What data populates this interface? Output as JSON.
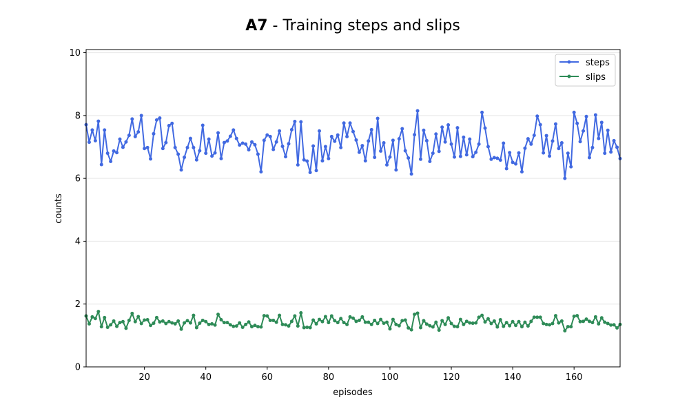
{
  "chart_data": {
    "type": "line",
    "title_bold": "A7",
    "title_rest": " - Training steps and slips",
    "xlabel": "episodes",
    "ylabel": "counts",
    "xlim": [
      1,
      175
    ],
    "ylim": [
      0,
      10.1
    ],
    "xticks": [
      20,
      40,
      60,
      80,
      100,
      120,
      140,
      160
    ],
    "yticks": [
      0,
      2,
      4,
      6,
      8,
      10
    ],
    "grid": "horizontal",
    "legend": "top-right",
    "series": [
      {
        "name": "steps",
        "color": "#4169e1",
        "values": [
          7.71,
          7.15,
          7.54,
          7.2,
          7.82,
          6.44,
          7.54,
          6.8,
          6.54,
          6.87,
          6.82,
          7.25,
          6.99,
          7.16,
          7.37,
          7.89,
          7.33,
          7.48,
          8.0,
          6.95,
          6.98,
          6.62,
          7.42,
          7.86,
          7.92,
          6.95,
          7.14,
          7.68,
          7.75,
          6.98,
          6.77,
          6.27,
          6.67,
          6.98,
          7.27,
          6.98,
          6.59,
          6.88,
          7.69,
          6.8,
          7.25,
          6.71,
          6.81,
          7.45,
          6.63,
          7.14,
          7.19,
          7.34,
          7.54,
          7.27,
          7.06,
          7.12,
          7.09,
          6.91,
          7.16,
          7.07,
          6.77,
          6.21,
          7.21,
          7.38,
          7.33,
          6.92,
          7.16,
          7.51,
          7.02,
          6.69,
          7.1,
          7.55,
          7.81,
          6.43,
          7.8,
          6.59,
          6.55,
          6.19,
          7.03,
          6.25,
          7.51,
          6.56,
          7.01,
          6.63,
          7.33,
          7.18,
          7.38,
          6.98,
          7.76,
          7.33,
          7.76,
          7.49,
          7.22,
          6.83,
          7.04,
          6.56,
          7.19,
          7.55,
          6.67,
          7.91,
          6.87,
          7.13,
          6.43,
          6.68,
          7.21,
          6.27,
          7.26,
          7.58,
          6.88,
          6.65,
          6.14,
          7.39,
          8.15,
          6.61,
          7.53,
          7.2,
          6.54,
          6.8,
          7.41,
          6.86,
          7.63,
          7.16,
          7.7,
          7.09,
          6.68,
          7.61,
          6.7,
          7.31,
          6.75,
          7.25,
          6.69,
          6.83,
          7.09,
          8.1,
          7.6,
          7.01,
          6.61,
          6.66,
          6.64,
          6.58,
          7.12,
          6.31,
          6.82,
          6.51,
          6.46,
          6.81,
          6.21,
          6.96,
          7.26,
          7.09,
          7.37,
          7.98,
          7.71,
          6.81,
          7.36,
          6.71,
          7.19,
          7.73,
          6.95,
          7.13,
          6.0,
          6.8,
          6.37,
          8.1,
          7.75,
          7.17,
          7.51,
          7.97,
          6.66,
          6.98,
          8.02,
          7.27,
          7.78,
          6.8,
          7.53,
          6.84,
          7.2,
          6.99,
          6.63
        ]
      },
      {
        "name": "slips",
        "color": "#2e8b57",
        "values": [
          1.62,
          1.37,
          1.59,
          1.54,
          1.76,
          1.28,
          1.57,
          1.26,
          1.34,
          1.46,
          1.29,
          1.41,
          1.44,
          1.23,
          1.48,
          1.7,
          1.44,
          1.6,
          1.38,
          1.49,
          1.5,
          1.32,
          1.39,
          1.57,
          1.43,
          1.46,
          1.38,
          1.44,
          1.4,
          1.37,
          1.46,
          1.2,
          1.4,
          1.47,
          1.4,
          1.64,
          1.25,
          1.39,
          1.48,
          1.44,
          1.35,
          1.37,
          1.33,
          1.67,
          1.5,
          1.41,
          1.41,
          1.34,
          1.29,
          1.3,
          1.4,
          1.26,
          1.35,
          1.43,
          1.28,
          1.32,
          1.28,
          1.27,
          1.63,
          1.62,
          1.48,
          1.48,
          1.42,
          1.64,
          1.35,
          1.34,
          1.3,
          1.45,
          1.62,
          1.3,
          1.72,
          1.25,
          1.26,
          1.25,
          1.49,
          1.37,
          1.51,
          1.44,
          1.6,
          1.41,
          1.62,
          1.47,
          1.41,
          1.54,
          1.41,
          1.35,
          1.59,
          1.55,
          1.45,
          1.48,
          1.59,
          1.42,
          1.42,
          1.35,
          1.48,
          1.38,
          1.51,
          1.39,
          1.42,
          1.21,
          1.51,
          1.35,
          1.31,
          1.47,
          1.49,
          1.24,
          1.18,
          1.67,
          1.71,
          1.25,
          1.47,
          1.36,
          1.31,
          1.27,
          1.42,
          1.17,
          1.47,
          1.35,
          1.56,
          1.38,
          1.29,
          1.28,
          1.51,
          1.35,
          1.45,
          1.4,
          1.39,
          1.4,
          1.58,
          1.64,
          1.43,
          1.53,
          1.38,
          1.46,
          1.27,
          1.5,
          1.29,
          1.41,
          1.31,
          1.44,
          1.32,
          1.44,
          1.28,
          1.42,
          1.3,
          1.45,
          1.58,
          1.58,
          1.58,
          1.38,
          1.35,
          1.34,
          1.38,
          1.63,
          1.4,
          1.46,
          1.15,
          1.28,
          1.28,
          1.61,
          1.63,
          1.44,
          1.45,
          1.52,
          1.45,
          1.41,
          1.59,
          1.37,
          1.56,
          1.42,
          1.38,
          1.33,
          1.34,
          1.24,
          1.35
        ]
      }
    ]
  }
}
